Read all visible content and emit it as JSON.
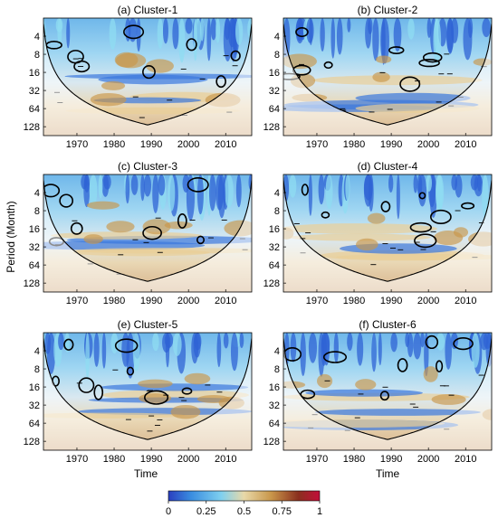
{
  "figure": {
    "ylabel": "Period (Month)",
    "xlabel": "Time",
    "colorbar": {
      "ticks": [
        "0",
        "0.25",
        "0.5",
        "0.75",
        "1"
      ],
      "colors": [
        "#2a3fbf",
        "#3a8de0",
        "#7fd0ef",
        "#e8d9a8",
        "#c9964a",
        "#8a2f1e",
        "#c40e3a"
      ]
    }
  },
  "chart_data": [
    {
      "type": "heatmap",
      "title": "(a) Cluster-1",
      "xlabel": "",
      "ylabel": "",
      "x_ticks": [
        1970,
        1980,
        1990,
        2000,
        2010
      ],
      "xlim": [
        1961,
        2017
      ],
      "y_ticks": [
        4,
        8,
        16,
        32,
        64,
        128
      ],
      "ylim": [
        2,
        180
      ],
      "y_scale": "log2-reversed",
      "colorbar_range": [
        0,
        1
      ],
      "cone_of_influence": true,
      "significant_regions_periods": [
        4,
        8,
        16,
        32,
        64,
        128
      ]
    },
    {
      "type": "heatmap",
      "title": "(b) Cluster-2",
      "xlabel": "",
      "ylabel": "",
      "x_ticks": [
        1970,
        1980,
        1990,
        2000,
        2010
      ],
      "xlim": [
        1961,
        2017
      ],
      "y_ticks": [
        4,
        8,
        16,
        32,
        64,
        128
      ],
      "ylim": [
        2,
        180
      ],
      "y_scale": "log2-reversed",
      "colorbar_range": [
        0,
        1
      ],
      "cone_of_influence": true
    },
    {
      "type": "heatmap",
      "title": "(c) Cluster-3",
      "xlabel": "",
      "ylabel": "",
      "x_ticks": [
        1970,
        1980,
        1990,
        2000,
        2010
      ],
      "xlim": [
        1961,
        2017
      ],
      "y_ticks": [
        4,
        8,
        16,
        32,
        64,
        128
      ],
      "ylim": [
        2,
        180
      ],
      "y_scale": "log2-reversed",
      "colorbar_range": [
        0,
        1
      ],
      "cone_of_influence": true
    },
    {
      "type": "heatmap",
      "title": "(d) Cluster-4",
      "xlabel": "",
      "ylabel": "",
      "x_ticks": [
        1970,
        1980,
        1990,
        2000,
        2010
      ],
      "xlim": [
        1961,
        2017
      ],
      "y_ticks": [
        4,
        8,
        16,
        32,
        64,
        128
      ],
      "ylim": [
        2,
        180
      ],
      "y_scale": "log2-reversed",
      "colorbar_range": [
        0,
        1
      ],
      "cone_of_influence": true
    },
    {
      "type": "heatmap",
      "title": "(e) Cluster-5",
      "xlabel": "Time",
      "ylabel": "",
      "x_ticks": [
        1970,
        1980,
        1990,
        2000,
        2010
      ],
      "xlim": [
        1961,
        2017
      ],
      "y_ticks": [
        4,
        8,
        16,
        32,
        64,
        128
      ],
      "ylim": [
        2,
        180
      ],
      "y_scale": "log2-reversed",
      "colorbar_range": [
        0,
        1
      ],
      "cone_of_influence": true
    },
    {
      "type": "heatmap",
      "title": "(f) Cluster-6",
      "xlabel": "Time",
      "ylabel": "",
      "x_ticks": [
        1970,
        1980,
        1990,
        2000,
        2010
      ],
      "xlim": [
        1961,
        2017
      ],
      "y_ticks": [
        4,
        8,
        16,
        32,
        64,
        128
      ],
      "ylim": [
        2,
        180
      ],
      "y_scale": "log2-reversed",
      "colorbar_range": [
        0,
        1
      ],
      "cone_of_influence": true
    }
  ]
}
